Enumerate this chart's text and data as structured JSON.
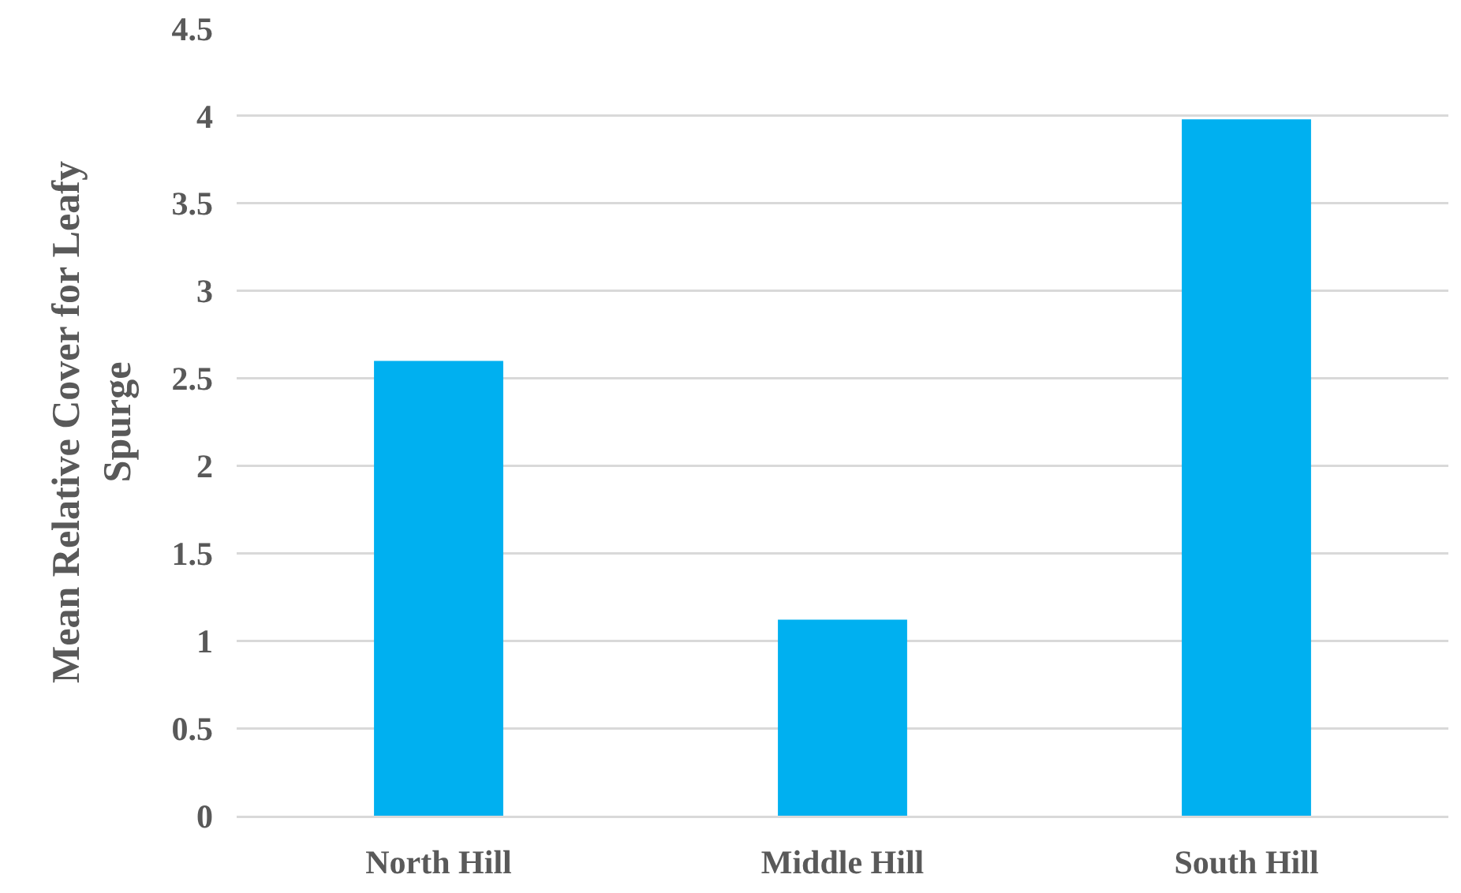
{
  "chart_data": {
    "type": "bar",
    "ylabel": "Mean Relative Cover for Leafy Spurge",
    "categories": [
      "North Hill",
      "Middle Hill",
      "South Hill"
    ],
    "values": [
      2.6,
      1.12,
      3.98
    ],
    "color": "#00b0f0",
    "ylim": [
      0,
      4.5
    ],
    "yticks": [
      0,
      0.5,
      1,
      1.5,
      2,
      2.5,
      3,
      3.5,
      4,
      4.5
    ],
    "grid": "y"
  }
}
